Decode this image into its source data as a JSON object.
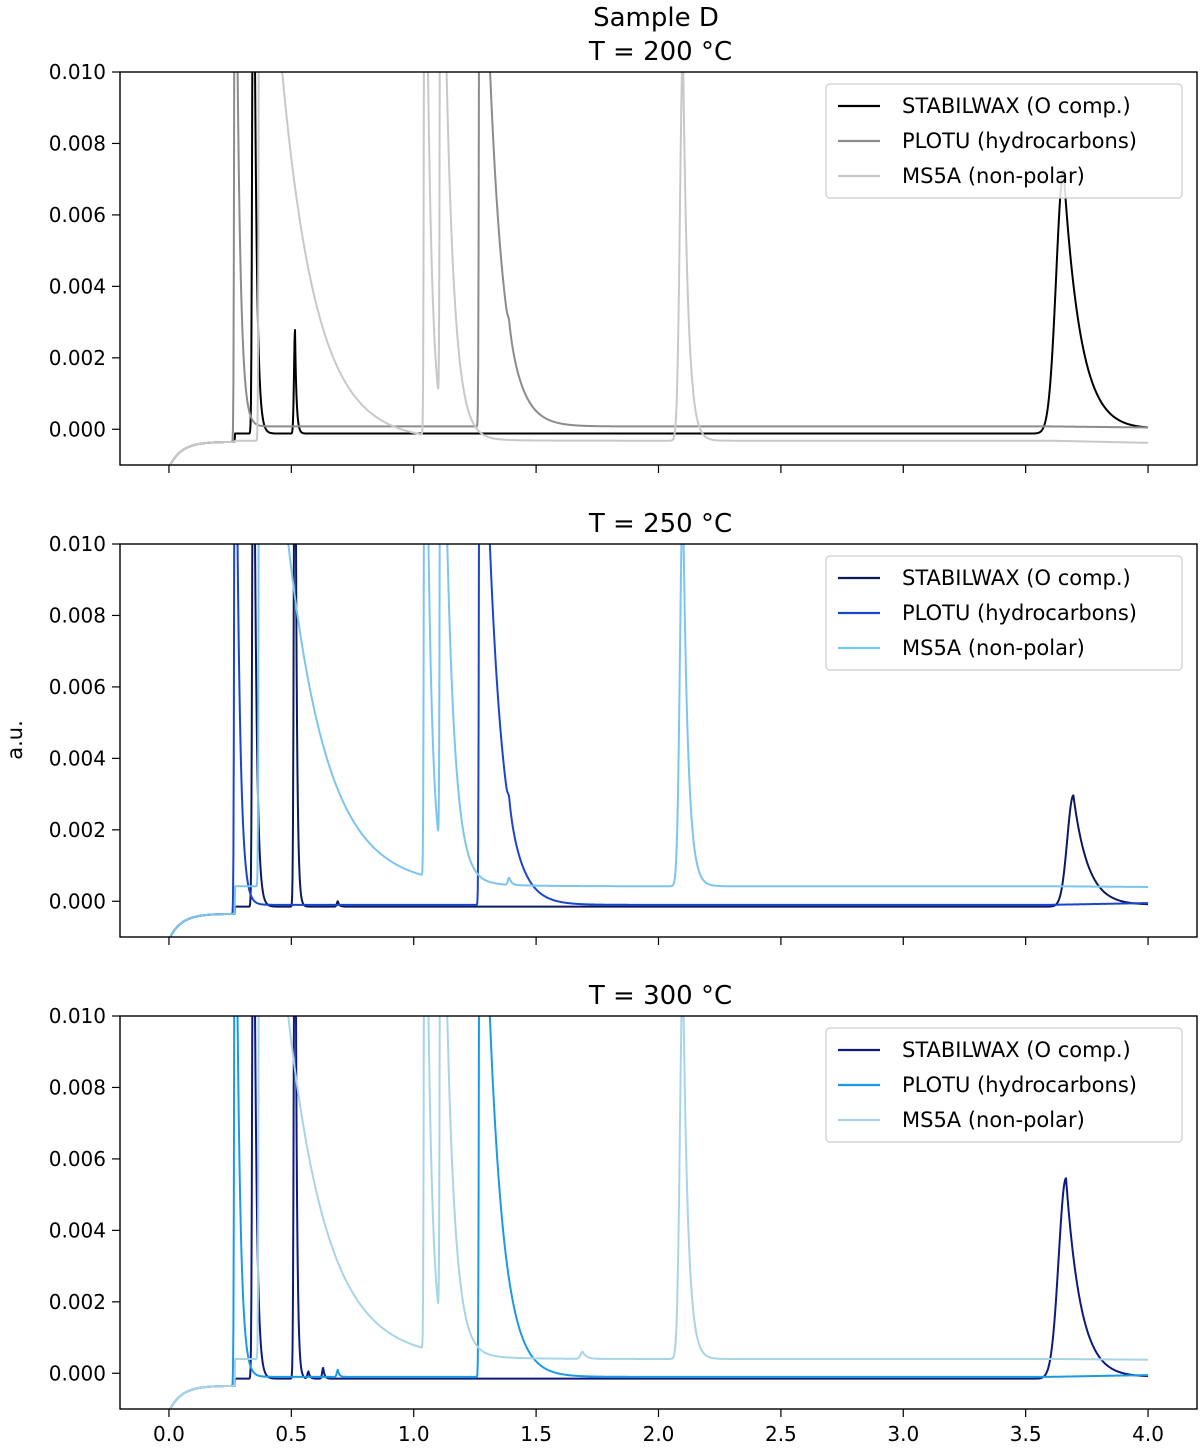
{
  "figure": {
    "suptitle": "Sample D",
    "ylabel": "a.u.",
    "x_ticks": [
      "0.0",
      "0.5",
      "1.0",
      "1.5",
      "2.0",
      "2.5",
      "3.0",
      "3.5",
      "4.0"
    ],
    "y_ticks": [
      "0.000",
      "0.002",
      "0.004",
      "0.006",
      "0.008",
      "0.010"
    ]
  },
  "chart_data": [
    {
      "type": "line",
      "title": "T = 200 °C",
      "xlabel": "",
      "ylabel": "a.u.",
      "xlim": [
        -0.2,
        4.2
      ],
      "ylim": [
        -0.001,
        0.01
      ],
      "x_tick_values": [
        0.0,
        0.5,
        1.0,
        1.5,
        2.0,
        2.5,
        3.0,
        3.5,
        4.0
      ],
      "y_tick_values": [
        0.0,
        0.002,
        0.004,
        0.006,
        0.008,
        0.01
      ],
      "legend_position": "top-right",
      "series": [
        {
          "name": "STABILWAX (O comp.)",
          "color": "#000000",
          "baseline": -0.00012,
          "end_value": 0.0,
          "peaks": [
            {
              "x": 0.345,
              "height": 0.02,
              "rise": 0.004,
              "tau": 0.01
            },
            {
              "x": 0.515,
              "height": 0.0029,
              "rise": 0.004,
              "tau": 0.006
            },
            {
              "x": 3.655,
              "height": 0.00735,
              "rise": 0.03,
              "tau": 0.07
            }
          ]
        },
        {
          "name": "PLOTU (hydrocarbons)",
          "color": "#8c8c8c",
          "baseline": 8e-05,
          "end_value": 5e-05,
          "peaks": [
            {
              "x": 0.27,
              "height": 0.02,
              "rise": 0.003,
              "tau": 0.015
            },
            {
              "x": 1.27,
              "height": 0.02,
              "rise": 0.003,
              "tau": 0.06
            },
            {
              "x": 1.39,
              "height": 0.00025,
              "rise": 0.005,
              "tau": 0.01
            }
          ]
        },
        {
          "name": "MS5A (non-polar)",
          "color": "#c8c8c8",
          "baseline": -0.00032,
          "end_value": -0.00038,
          "peaks": [
            {
              "x": 0.37,
              "height": 0.02,
              "rise": 0.003,
              "tau": 0.14
            },
            {
              "x": 1.045,
              "height": 0.02,
              "rise": 0.003,
              "tau": 0.02
            },
            {
              "x": 1.11,
              "height": 0.02,
              "rise": 0.003,
              "tau": 0.035
            },
            {
              "x": 2.1,
              "height": 0.011,
              "rise": 0.012,
              "tau": 0.02
            }
          ]
        }
      ]
    },
    {
      "type": "line",
      "title": "T = 250 °C",
      "xlabel": "",
      "ylabel": "a.u.",
      "xlim": [
        -0.2,
        4.2
      ],
      "ylim": [
        -0.001,
        0.01
      ],
      "x_tick_values": [
        0.0,
        0.5,
        1.0,
        1.5,
        2.0,
        2.5,
        3.0,
        3.5,
        4.0
      ],
      "y_tick_values": [
        0.0,
        0.002,
        0.004,
        0.006,
        0.008,
        0.01
      ],
      "legend_position": "top-right",
      "series": [
        {
          "name": "STABILWAX (O comp.)",
          "color": "#0b1a5e",
          "baseline": -0.00015,
          "end_value": -0.0001,
          "peaks": [
            {
              "x": 0.345,
              "height": 0.02,
              "rise": 0.004,
              "tau": 0.01
            },
            {
              "x": 0.515,
              "height": 0.02,
              "rise": 0.004,
              "tau": 0.006
            },
            {
              "x": 0.69,
              "height": 0.00015,
              "rise": 0.004,
              "tau": 0.006
            },
            {
              "x": 3.695,
              "height": 0.0031,
              "rise": 0.025,
              "tau": 0.06
            }
          ]
        },
        {
          "name": "PLOTU (hydrocarbons)",
          "color": "#1a45cc",
          "baseline": -0.0001,
          "end_value": -5e-05,
          "peaks": [
            {
              "x": 0.27,
              "height": 0.02,
              "rise": 0.003,
              "tau": 0.015
            },
            {
              "x": 1.27,
              "height": 0.02,
              "rise": 0.003,
              "tau": 0.06
            },
            {
              "x": 1.39,
              "height": 0.0003,
              "rise": 0.005,
              "tau": 0.01
            }
          ]
        },
        {
          "name": "MS5A (non-polar)",
          "color": "#7cc5ef",
          "baseline": 0.00042,
          "end_value": 0.0004,
          "peaks": [
            {
              "x": 0.37,
              "height": 0.02,
              "rise": 0.003,
              "tau": 0.16
            },
            {
              "x": 1.045,
              "height": 0.02,
              "rise": 0.003,
              "tau": 0.02
            },
            {
              "x": 1.11,
              "height": 0.02,
              "rise": 0.003,
              "tau": 0.035
            },
            {
              "x": 1.39,
              "height": 0.0002,
              "rise": 0.005,
              "tau": 0.01
            },
            {
              "x": 2.1,
              "height": 0.011,
              "rise": 0.012,
              "tau": 0.02
            }
          ]
        }
      ]
    },
    {
      "type": "line",
      "title": "T = 300 °C",
      "xlabel": "",
      "ylabel": "a.u.",
      "xlim": [
        -0.2,
        4.2
      ],
      "ylim": [
        -0.001,
        0.01
      ],
      "x_tick_values": [
        0.0,
        0.5,
        1.0,
        1.5,
        2.0,
        2.5,
        3.0,
        3.5,
        4.0
      ],
      "y_tick_values": [
        0.0,
        0.002,
        0.004,
        0.006,
        0.008,
        0.01
      ],
      "legend_position": "top-right",
      "series": [
        {
          "name": "STABILWAX (O comp.)",
          "color": "#0d1a80",
          "baseline": -0.00015,
          "end_value": -0.0001,
          "peaks": [
            {
              "x": 0.345,
              "height": 0.02,
              "rise": 0.004,
              "tau": 0.01
            },
            {
              "x": 0.515,
              "height": 0.02,
              "rise": 0.004,
              "tau": 0.006
            },
            {
              "x": 0.57,
              "height": 0.0002,
              "rise": 0.004,
              "tau": 0.006
            },
            {
              "x": 0.63,
              "height": 0.0003,
              "rise": 0.004,
              "tau": 0.006
            },
            {
              "x": 3.665,
              "height": 0.0056,
              "rise": 0.03,
              "tau": 0.06
            }
          ]
        },
        {
          "name": "PLOTU (hydrocarbons)",
          "color": "#1a9ae6",
          "baseline": -0.0001,
          "end_value": -5e-05,
          "peaks": [
            {
              "x": 0.27,
              "height": 0.02,
              "rise": 0.003,
              "tau": 0.015
            },
            {
              "x": 1.27,
              "height": 0.02,
              "rise": 0.003,
              "tau": 0.06
            },
            {
              "x": 0.69,
              "height": 0.0002,
              "rise": 0.004,
              "tau": 0.006
            }
          ]
        },
        {
          "name": "MS5A (non-polar)",
          "color": "#a8d4e8",
          "baseline": 0.0004,
          "end_value": 0.00038,
          "peaks": [
            {
              "x": 0.37,
              "height": 0.02,
              "rise": 0.003,
              "tau": 0.16
            },
            {
              "x": 1.045,
              "height": 0.02,
              "rise": 0.003,
              "tau": 0.02
            },
            {
              "x": 1.11,
              "height": 0.02,
              "rise": 0.003,
              "tau": 0.035
            },
            {
              "x": 1.69,
              "height": 0.0002,
              "rise": 0.008,
              "tau": 0.015
            },
            {
              "x": 2.1,
              "height": 0.011,
              "rise": 0.012,
              "tau": 0.02
            }
          ]
        }
      ]
    }
  ]
}
